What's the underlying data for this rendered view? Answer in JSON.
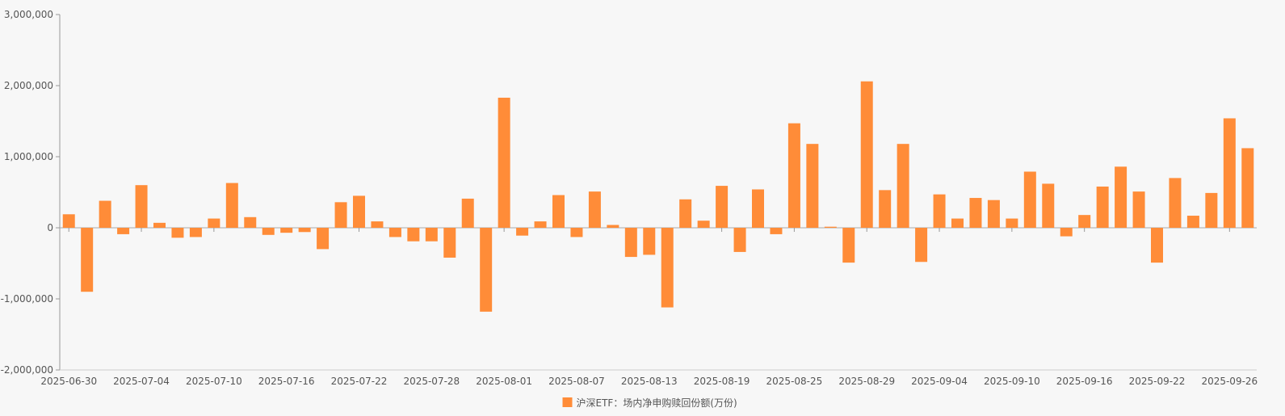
{
  "chart_data": {
    "type": "bar",
    "title": "",
    "xlabel": "",
    "ylabel": "",
    "ylim": [
      -2000000,
      3000000
    ],
    "y_ticks": [
      -2000000,
      -1000000,
      0,
      1000000,
      2000000,
      3000000
    ],
    "y_tick_labels": [
      "-2,000,000",
      "-1,000,000",
      "0",
      "1,000,000",
      "2,000,000",
      "3,000,000"
    ],
    "x_tick_labels": [
      "2025-06-30",
      "2025-07-04",
      "2025-07-10",
      "2025-07-16",
      "2025-07-22",
      "2025-07-28",
      "2025-08-01",
      "2025-08-07",
      "2025-08-13",
      "2025-08-19",
      "2025-08-25",
      "2025-08-29",
      "2025-09-04",
      "2025-09-10",
      "2025-09-16",
      "2025-09-22",
      "2025-09-26"
    ],
    "x_tick_every": 4,
    "grid": false,
    "legend_position": "bottom-center",
    "series": [
      {
        "name": "沪深ETF：场内净申购赎回份额(万份)",
        "color": "#ff8c38",
        "values": [
          190000,
          -900000,
          380000,
          -90000,
          600000,
          70000,
          -140000,
          -130000,
          130000,
          630000,
          150000,
          -100000,
          -70000,
          -60000,
          -300000,
          360000,
          450000,
          90000,
          -130000,
          -190000,
          -190000,
          -420000,
          410000,
          -1180000,
          1830000,
          -110000,
          90000,
          460000,
          -130000,
          510000,
          40000,
          -410000,
          -380000,
          -1120000,
          400000,
          100000,
          590000,
          -340000,
          540000,
          -90000,
          1470000,
          1180000,
          15000,
          -490000,
          2060000,
          530000,
          1180000,
          -480000,
          470000,
          130000,
          420000,
          390000,
          130000,
          790000,
          620000,
          -120000,
          180000,
          580000,
          860000,
          510000,
          -490000,
          700000,
          170000,
          490000,
          1540000,
          1120000
        ]
      }
    ]
  }
}
